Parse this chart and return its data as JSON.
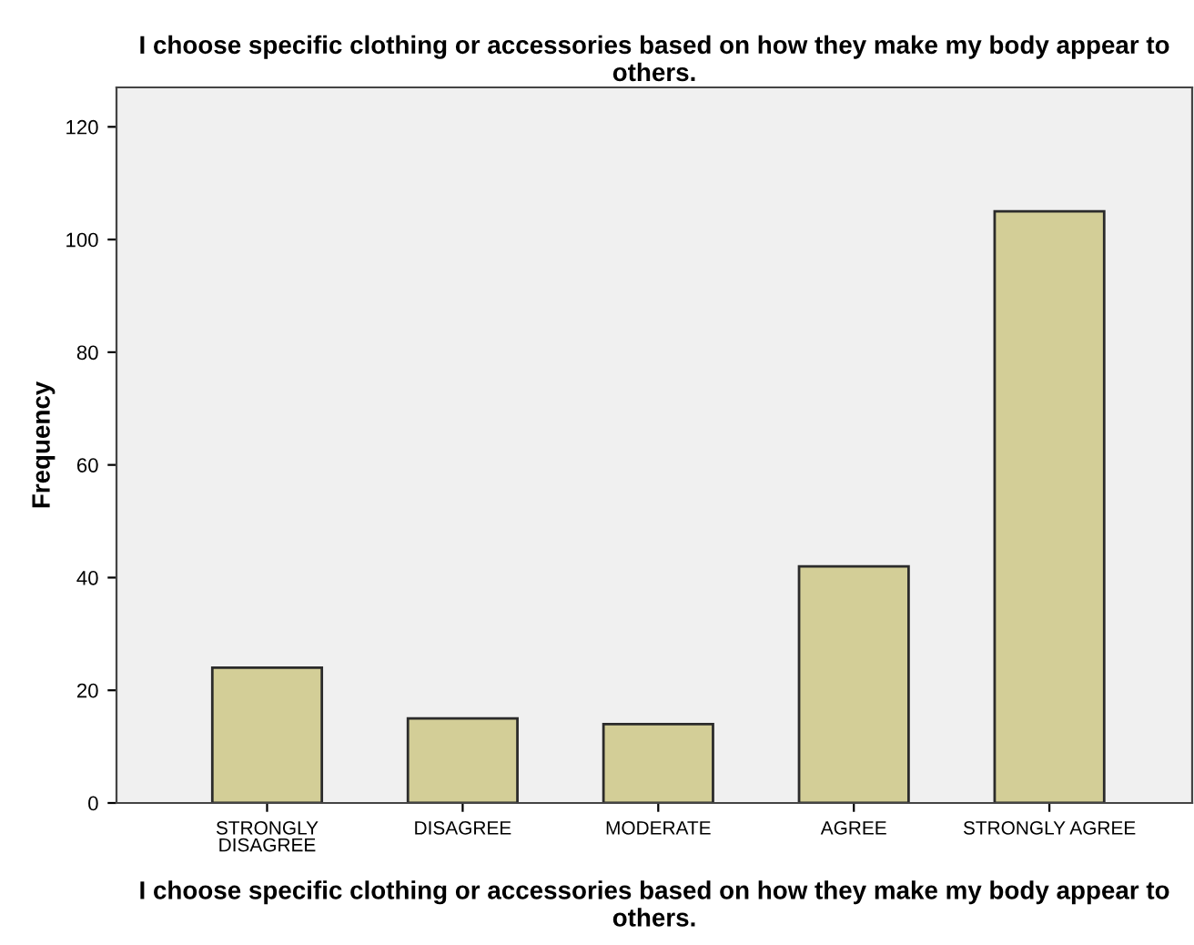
{
  "chart_data": {
    "type": "bar",
    "title": "I choose specific clothing or accessories based on how they make my body appear to others.",
    "xlabel": "I choose specific clothing or accessories based on how they make my body appear to others.",
    "ylabel": "Frequency",
    "categories": [
      "STRONGLY\nDISAGREE",
      "DISAGREE",
      "MODERATE",
      "AGREE",
      "STRONGLY AGREE"
    ],
    "values": [
      24,
      15,
      14,
      42,
      105
    ],
    "color": "#d3ce97",
    "ylim": [
      0,
      127
    ],
    "yticks": [
      0,
      20,
      40,
      60,
      80,
      100,
      120
    ],
    "grid": false
  }
}
